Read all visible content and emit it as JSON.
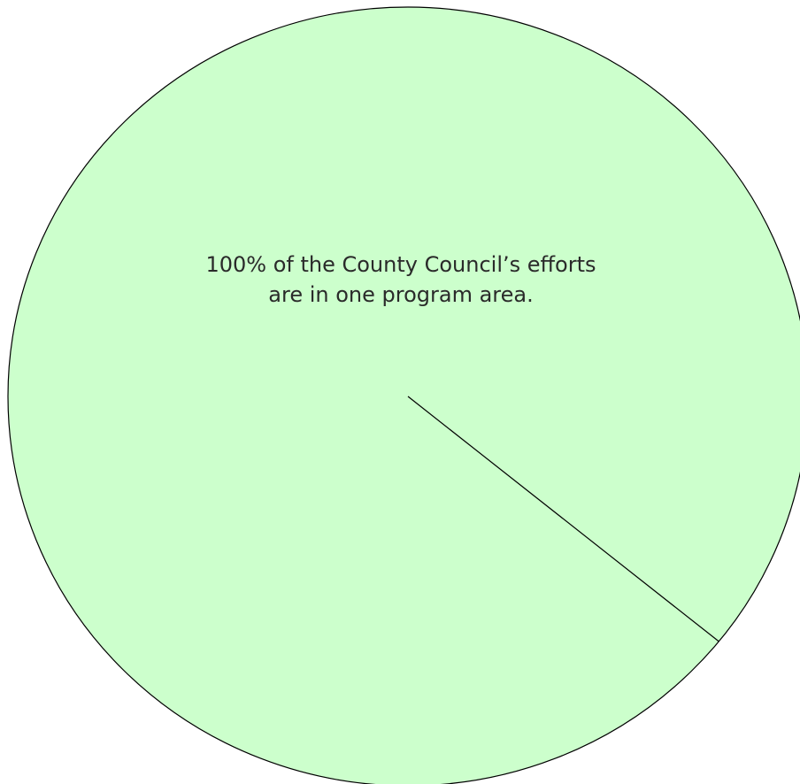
{
  "chart_data": {
    "type": "pie",
    "slices": [
      {
        "label": "",
        "value": 100,
        "color": "#ccffcc"
      }
    ],
    "annotation": [
      "100% of the County Council’s efforts",
      "are in one program area."
    ],
    "stroke_color": "#000000",
    "legend": "none",
    "title": ""
  }
}
